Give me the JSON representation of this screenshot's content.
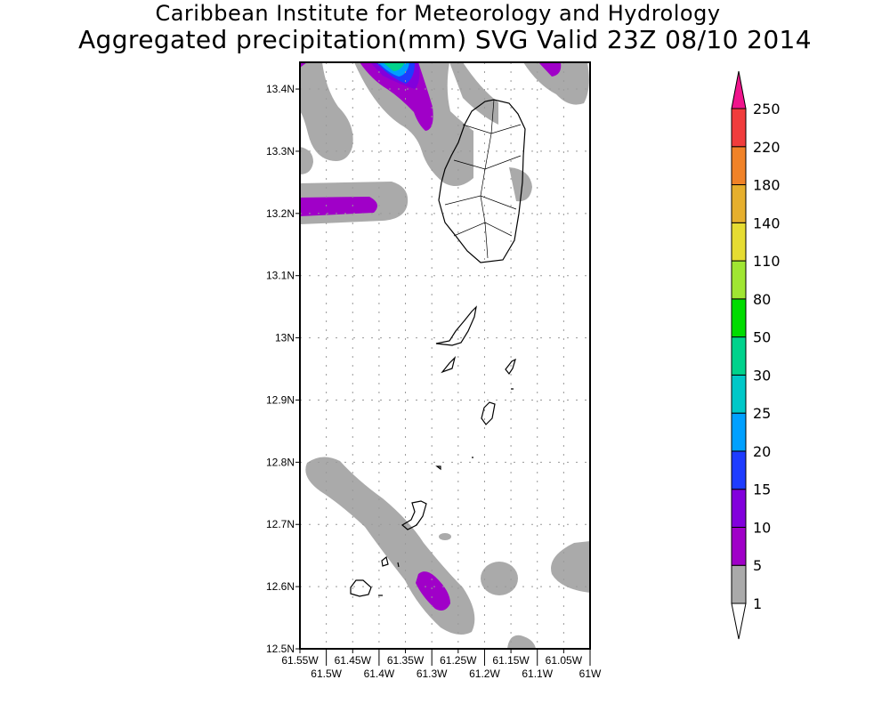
{
  "header": {
    "title": "Caribbean Institute for Meteorology and Hydrology",
    "subtitle": "Aggregated precipitation(mm) SVG Valid 23Z 08/10 2014"
  },
  "chart_data": {
    "type": "heatmap",
    "title": "Aggregated precipitation(mm) SVG Valid 23Z 08/10 2014",
    "xlim": [
      -61.55,
      -61.0
    ],
    "ylim": [
      12.5,
      13.443
    ],
    "x_ticks": [
      {
        "value": -61.55,
        "label": "61.55W"
      },
      {
        "value": -61.5,
        "label": "61.5W"
      },
      {
        "value": -61.45,
        "label": "61.45W"
      },
      {
        "value": -61.4,
        "label": "61.4W"
      },
      {
        "value": -61.35,
        "label": "61.35W"
      },
      {
        "value": -61.3,
        "label": "61.3W"
      },
      {
        "value": -61.25,
        "label": "61.25W"
      },
      {
        "value": -61.2,
        "label": "61.2W"
      },
      {
        "value": -61.15,
        "label": "61.15W"
      },
      {
        "value": -61.1,
        "label": "61.1W"
      },
      {
        "value": -61.05,
        "label": "61.05W"
      },
      {
        "value": -61.0,
        "label": "61W"
      }
    ],
    "y_ticks": [
      {
        "value": 12.5,
        "label": "12.5N"
      },
      {
        "value": 12.6,
        "label": "12.6N"
      },
      {
        "value": 12.7,
        "label": "12.7N"
      },
      {
        "value": 12.8,
        "label": "12.8N"
      },
      {
        "value": 12.9,
        "label": "12.9N"
      },
      {
        "value": 13.0,
        "label": "13N"
      },
      {
        "value": 13.1,
        "label": "13.1N"
      },
      {
        "value": 13.2,
        "label": "13.2N"
      },
      {
        "value": 13.3,
        "label": "13.3N"
      },
      {
        "value": 13.4,
        "label": "13.4N"
      }
    ],
    "grid": true,
    "colorbar": {
      "placement": "right",
      "levels": [
        1,
        5,
        10,
        15,
        20,
        25,
        30,
        50,
        80,
        110,
        140,
        180,
        220,
        250
      ],
      "labels": [
        "1",
        "5",
        "10",
        "15",
        "20",
        "25",
        "30",
        "50",
        "80",
        "110",
        "140",
        "180",
        "220",
        "250"
      ],
      "colors": [
        "#aaaaaa",
        "#a000c8",
        "#8200dc",
        "#1e3cff",
        "#00a0ff",
        "#00c8c8",
        "#00d28c",
        "#00dc00",
        "#a0e632",
        "#e6dc32",
        "#e6af2d",
        "#f08228",
        "#f03c3c"
      ],
      "below_color": "#ffffff",
      "above_color": "#f0148c"
    }
  }
}
